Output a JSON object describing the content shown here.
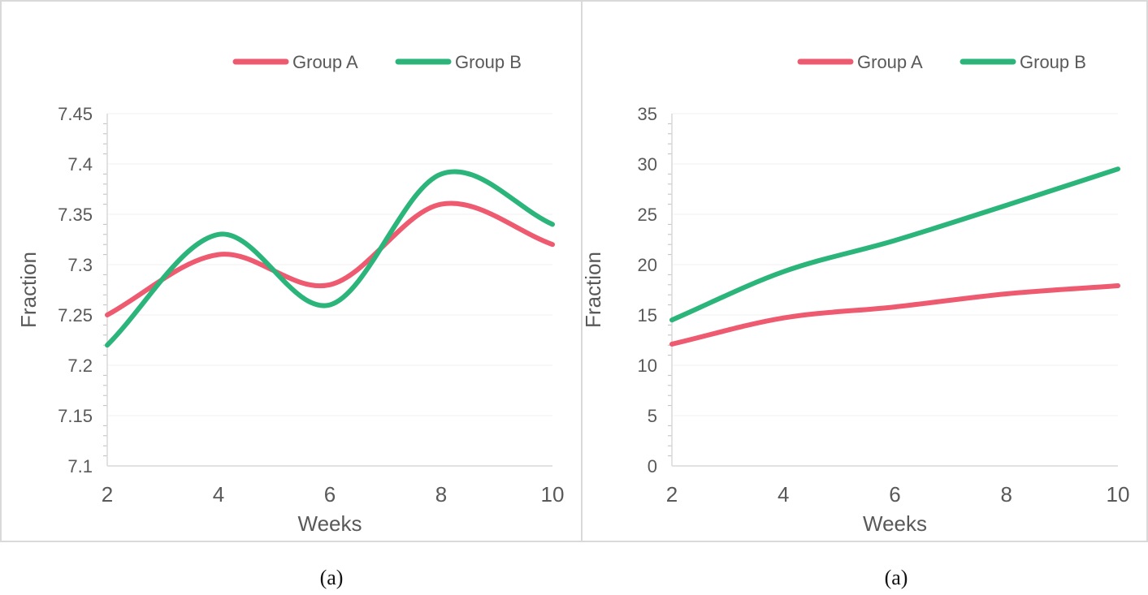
{
  "chart_data": [
    {
      "type": "line",
      "title": "",
      "xlabel": "Weeks",
      "ylabel": "Fraction",
      "x": [
        2,
        4,
        6,
        8,
        10
      ],
      "xticks": [
        "2",
        "4",
        "6",
        "8",
        "10"
      ],
      "yticks": [
        "7.1",
        "7.15",
        "7.2",
        "7.25",
        "7.3",
        "7.35",
        "7.4",
        "7.45"
      ],
      "ylim": [
        7.1,
        7.45
      ],
      "xlim": [
        2,
        10
      ],
      "legend_position": "top-right",
      "series": [
        {
          "name": "Group A",
          "color": "#ee5a6f",
          "values": [
            7.25,
            7.31,
            7.28,
            7.36,
            7.32
          ]
        },
        {
          "name": "Group B",
          "color": "#2bb57a",
          "values": [
            7.22,
            7.33,
            7.26,
            7.39,
            7.34
          ]
        }
      ],
      "caption": "(a)"
    },
    {
      "type": "line",
      "title": "",
      "xlabel": "Weeks",
      "ylabel": "Fraction",
      "x": [
        2,
        4,
        6,
        8,
        10
      ],
      "xticks": [
        "2",
        "4",
        "6",
        "8",
        "10"
      ],
      "yticks": [
        "0",
        "5",
        "10",
        "15",
        "20",
        "25",
        "30",
        "35"
      ],
      "ylim": [
        0,
        35
      ],
      "xlim": [
        2,
        10
      ],
      "legend_position": "top-right",
      "series": [
        {
          "name": "Group A",
          "color": "#ee5a6f",
          "values": [
            12.1,
            14.7,
            15.8,
            17.1,
            17.9
          ]
        },
        {
          "name": "Group B",
          "color": "#2bb57a",
          "values": [
            14.5,
            19.3,
            22.4,
            25.9,
            29.5
          ]
        }
      ],
      "caption": "(a)"
    }
  ]
}
